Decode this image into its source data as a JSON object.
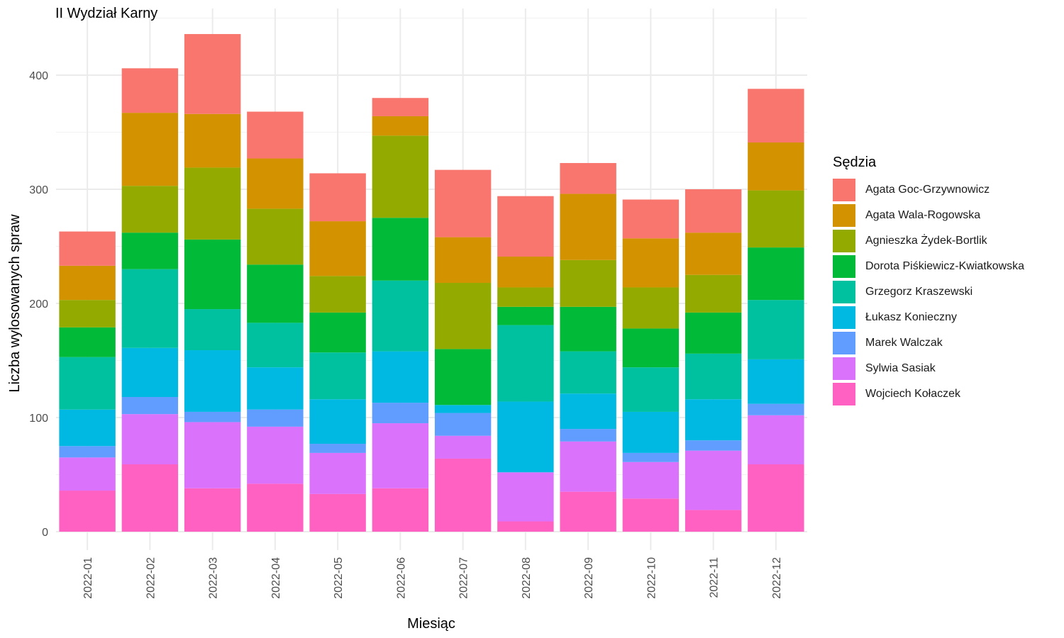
{
  "chart_data": {
    "type": "bar",
    "stacked": true,
    "title": "II Wydział Karny",
    "xlabel": "Miesiąc",
    "ylabel": "Liczba wylosowanych spraw",
    "ylim": [
      0,
      440
    ],
    "yticks": [
      0,
      100,
      200,
      300,
      400
    ],
    "grid": true,
    "legend_title": "Sędzia",
    "legend_position": "right",
    "categories": [
      "2022-01",
      "2022-02",
      "2022-03",
      "2022-04",
      "2022-05",
      "2022-06",
      "2022-07",
      "2022-08",
      "2022-09",
      "2022-10",
      "2022-11",
      "2022-12"
    ],
    "series": [
      {
        "name": "Agata Goc-Grzywnowicz",
        "color": "#F8766D",
        "values": [
          30,
          39,
          70,
          41,
          42,
          16,
          59,
          53,
          27,
          34,
          38,
          47
        ]
      },
      {
        "name": "Agata Wala-Rogowska",
        "color": "#D39200",
        "values": [
          30,
          64,
          47,
          44,
          48,
          17,
          40,
          27,
          58,
          43,
          37,
          42
        ]
      },
      {
        "name": "Agnieszka Żydek-Bortlik",
        "color": "#93AA00",
        "values": [
          24,
          41,
          63,
          49,
          32,
          72,
          58,
          17,
          41,
          36,
          33,
          50
        ]
      },
      {
        "name": "Dorota Piśkiewicz-Kwiatkowska",
        "color": "#00BA38",
        "values": [
          26,
          32,
          61,
          51,
          35,
          55,
          49,
          16,
          39,
          34,
          36,
          46
        ]
      },
      {
        "name": "Grzegorz Kraszewski",
        "color": "#00C19F",
        "values": [
          46,
          69,
          36,
          39,
          41,
          62,
          0,
          67,
          37,
          39,
          40,
          52
        ]
      },
      {
        "name": "Łukasz Konieczny",
        "color": "#00B9E3",
        "values": [
          32,
          43,
          54,
          37,
          39,
          45,
          7,
          62,
          31,
          36,
          36,
          39
        ]
      },
      {
        "name": "Marek Walczak",
        "color": "#619CFF",
        "values": [
          10,
          15,
          9,
          15,
          8,
          18,
          20,
          0,
          11,
          8,
          9,
          10
        ]
      },
      {
        "name": "Sylwia Sasiak",
        "color": "#DB72FB",
        "values": [
          29,
          44,
          58,
          50,
          36,
          57,
          20,
          43,
          44,
          32,
          52,
          43
        ]
      },
      {
        "name": "Wojciech Kołaczek",
        "color": "#FF61C3",
        "values": [
          36,
          59,
          38,
          42,
          33,
          38,
          64,
          9,
          35,
          29,
          19,
          59
        ]
      }
    ]
  }
}
